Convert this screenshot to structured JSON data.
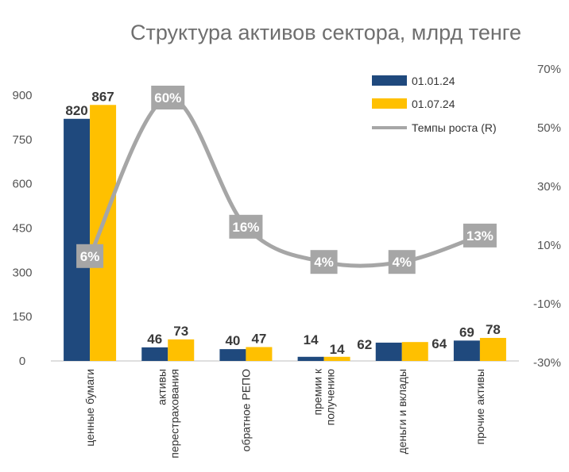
{
  "chart_data": {
    "type": "bar",
    "title": "Структура активов сектора, млрд тенге",
    "categories": [
      [
        "ценные бумаги"
      ],
      [
        "активы",
        "перестрахования"
      ],
      [
        "обратное РЕПО"
      ],
      [
        "премии к",
        "получению"
      ],
      [
        "деньги и вклады"
      ],
      [
        "прочие активы"
      ]
    ],
    "series": [
      {
        "name": "01.01.24",
        "values": [
          820,
          46,
          40,
          14,
          62,
          69
        ],
        "color": "#1f497d"
      },
      {
        "name": "01.07.24",
        "values": [
          867,
          73,
          47,
          14,
          64,
          78
        ],
        "color": "#ffc000"
      }
    ],
    "line_series": {
      "name": "Темпы роста (R)",
      "values": [
        6,
        60,
        16,
        4,
        4,
        13
      ],
      "labels": [
        "6%",
        "60%",
        "16%",
        "4%",
        "4%",
        "13%"
      ],
      "color": "#a6a6a6",
      "axis": "right"
    },
    "y_left": {
      "min": 0,
      "max": 900,
      "ticks": [
        "0",
        "150",
        "300",
        "450",
        "600",
        "750",
        "900"
      ]
    },
    "y_right": {
      "min": -30,
      "max": 70,
      "ticks": [
        "-30%",
        "-10%",
        "10%",
        "30%",
        "50%",
        "70%"
      ]
    },
    "legend_position": "top-right",
    "grid": false
  }
}
